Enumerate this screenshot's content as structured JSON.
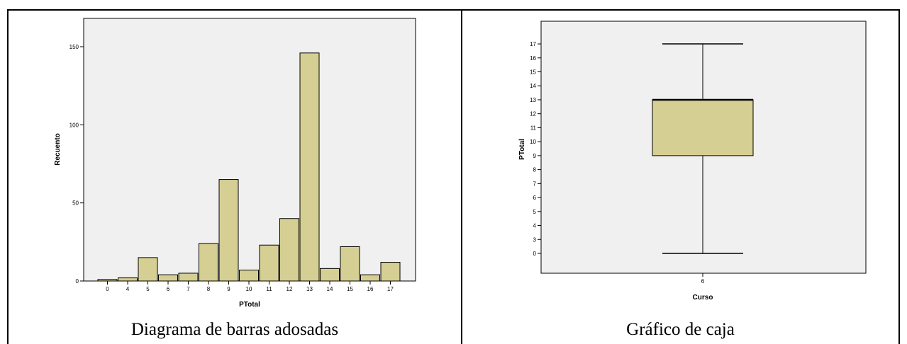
{
  "captions": {
    "left": "Diagrama de barras adosadas",
    "right": "Gráfico de caja"
  },
  "colors": {
    "plot_background": "#f0f0f0",
    "bar_fill": "#d6cf94",
    "stroke": "#000000"
  },
  "chart_data": [
    {
      "type": "bar",
      "xlabel": "PTotal",
      "ylabel": "Recuento",
      "categories": [
        "0",
        "4",
        "5",
        "6",
        "7",
        "8",
        "9",
        "10",
        "11",
        "12",
        "13",
        "14",
        "15",
        "16",
        "17"
      ],
      "values": [
        1,
        2,
        15,
        4,
        5,
        24,
        65,
        7,
        23,
        40,
        146,
        8,
        22,
        4,
        12
      ],
      "yticks": [
        0,
        50,
        100,
        150
      ],
      "ylim": [
        0,
        160
      ],
      "grid": false
    },
    {
      "type": "box",
      "xlabel": "Curso",
      "ylabel": "PTotal",
      "categories": [
        "6"
      ],
      "min": 0,
      "q1": 9,
      "median": 13,
      "q3": 13,
      "max": 17,
      "ytick_labels": [
        "0",
        "3",
        "4",
        "5",
        "6",
        "7",
        "8",
        "9",
        "10",
        "11",
        "12",
        "13",
        "14",
        "15",
        "16",
        "17"
      ],
      "grid": false
    }
  ]
}
